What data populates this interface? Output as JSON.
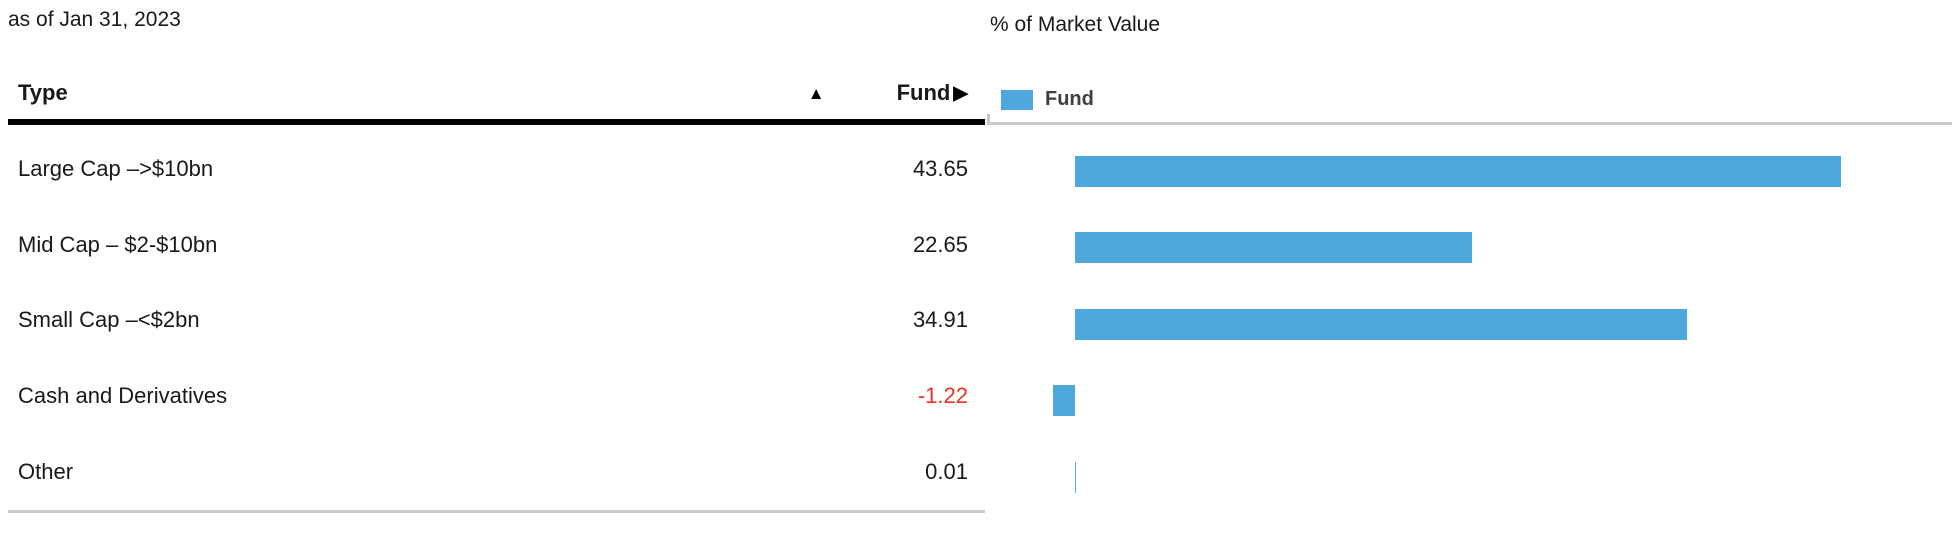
{
  "table": {
    "as_of_label": "as of Jan 31, 2023",
    "header": {
      "type_label": "Type",
      "fund_label": "Fund",
      "sort_icon": "▲",
      "expand_icon": "▶"
    },
    "rows": [
      {
        "type": "Large Cap –>$10bn",
        "fund": "43.65"
      },
      {
        "type": "Mid Cap – $2-$10bn",
        "fund": "22.65"
      },
      {
        "type": "Small Cap –<$2bn",
        "fund": "34.91"
      },
      {
        "type": "Cash and Derivatives",
        "fund": "-1.22"
      },
      {
        "type": "Other",
        "fund": "0.01"
      }
    ]
  },
  "chart": {
    "title": "% of Market Value",
    "legend": [
      {
        "label": "Fund",
        "color": "#4FA8DC"
      }
    ]
  },
  "chart_data": {
    "type": "bar",
    "orientation": "horizontal",
    "title": "% of Market Value",
    "categories": [
      "Large Cap –>$10bn",
      "Mid Cap – $2-$10bn",
      "Small Cap –<$2bn",
      "Cash and Derivatives",
      "Other"
    ],
    "series": [
      {
        "name": "Fund",
        "values": [
          43.65,
          22.65,
          34.91,
          -1.22,
          0.01
        ]
      }
    ],
    "xlim": [
      -5,
      50
    ],
    "grid": false,
    "legend_position": "top-left",
    "bar_color": "#4FA8DC",
    "negative_value_color": "#ED3124"
  },
  "colors": {
    "text": "#191919",
    "negative": "#ED3124",
    "bar": "#4FA8DC",
    "axis_line": "#C9C9C9",
    "table_bottom_border": "#CBCBCB",
    "header_border": "#000000",
    "legend_text": "#3F3F3F"
  }
}
